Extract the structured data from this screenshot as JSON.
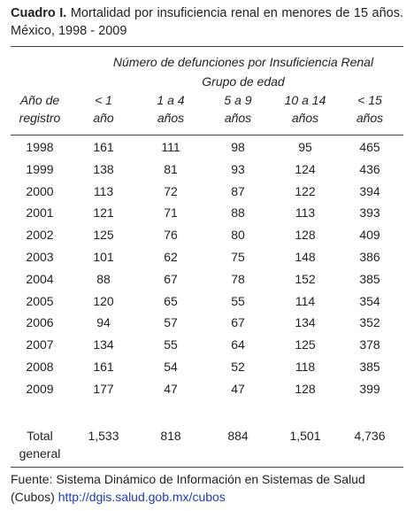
{
  "title": {
    "label": "Cuadro I.",
    "text": "Mortalidad por insuficiencia renal en menores de 15 años. México, 1998 - 2009"
  },
  "table": {
    "group_header": "Número de defunciones por Insuficiencia Renal",
    "group_subheader": "Grupo de edad",
    "columns": [
      [
        "Año de",
        "registro"
      ],
      [
        "< 1",
        "año"
      ],
      [
        "1 a 4",
        "años"
      ],
      [
        "5 a 9",
        "años"
      ],
      [
        "10 a 14",
        "años"
      ],
      [
        "< 15",
        "años"
      ]
    ],
    "rows": [
      [
        "1998",
        "161",
        "111",
        "98",
        "95",
        "465"
      ],
      [
        "1999",
        "138",
        "81",
        "93",
        "124",
        "436"
      ],
      [
        "2000",
        "113",
        "72",
        "87",
        "122",
        "394"
      ],
      [
        "2001",
        "121",
        "71",
        "88",
        "113",
        "393"
      ],
      [
        "2002",
        "125",
        "76",
        "80",
        "128",
        "409"
      ],
      [
        "2003",
        "101",
        "62",
        "75",
        "148",
        "386"
      ],
      [
        "2004",
        "88",
        "67",
        "78",
        "152",
        "385"
      ],
      [
        "2005",
        "120",
        "65",
        "55",
        "114",
        "354"
      ],
      [
        "2006",
        "94",
        "57",
        "67",
        "134",
        "352"
      ],
      [
        "2007",
        "134",
        "55",
        "64",
        "125",
        "378"
      ],
      [
        "2008",
        "161",
        "54",
        "52",
        "118",
        "385"
      ],
      [
        "2009",
        "177",
        "47",
        "47",
        "128",
        "399"
      ]
    ],
    "total": [
      [
        "Total",
        "general"
      ],
      "1,533",
      "818",
      "884",
      "1,501",
      "4,736"
    ]
  },
  "footer": {
    "source": "Fuente:  Sistema Dinámico de Información en Sistemas de Salud (Cubos)",
    "link": "http://dgis.salud.gob.mx/cubos"
  }
}
